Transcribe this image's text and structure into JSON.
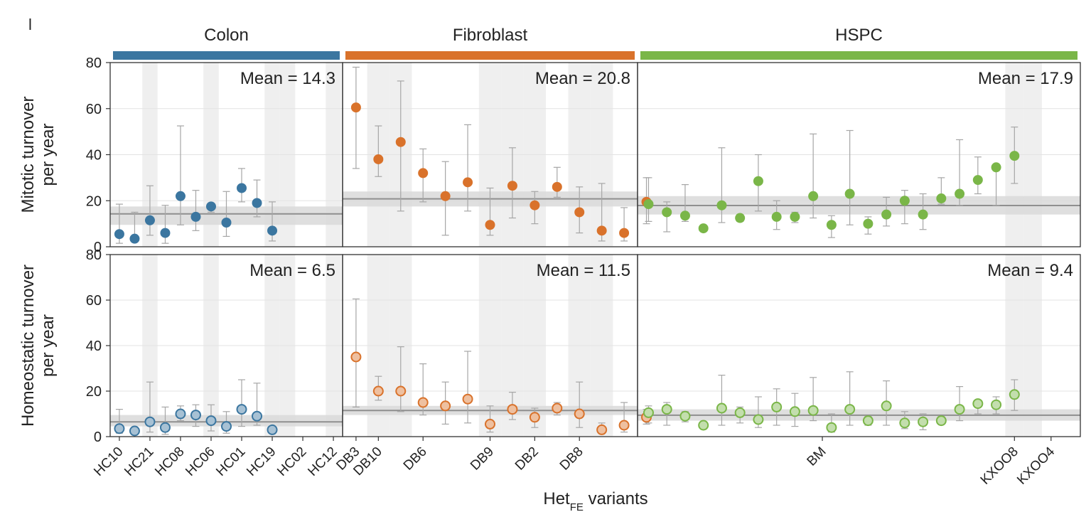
{
  "chart_data": {
    "type": "scatter",
    "panel_label": "l",
    "x_label_main": "Het",
    "x_label_sub": "FE",
    "x_label_rest": " variants",
    "ylim": [
      0,
      80
    ],
    "yticks": [
      "0",
      "20",
      "40",
      "60",
      "80"
    ],
    "groups": [
      {
        "name": "Colon",
        "color": "#3b76a0",
        "tick_labels": [
          "HC10",
          "HC21",
          "HC08",
          "HC06",
          "HC01",
          "HC19",
          "HC02",
          "HC12"
        ],
        "tick_positions": [
          1,
          3,
          5,
          7,
          9,
          11,
          13,
          15
        ],
        "shaded_positions": [
          3,
          7,
          11,
          12,
          15
        ],
        "n": 15
      },
      {
        "name": "Fibroblast",
        "color": "#d9722b",
        "tick_labels": [
          "DB3",
          "DB10",
          "DB6",
          "DB9",
          "DB2",
          "DB8"
        ],
        "tick_positions": [
          1,
          2,
          4,
          7,
          9,
          11
        ],
        "shaded_positions": [
          2,
          3,
          7,
          8,
          9,
          11,
          12
        ],
        "n": 13
      },
      {
        "name": "HSPC",
        "color": "#7ab648",
        "tick_labels": [
          "BM",
          "KXOO8",
          "KXOO4"
        ],
        "tick_positions": [
          10.5,
          21,
          23
        ],
        "shaded_positions": [
          21,
          22
        ],
        "n": 24
      }
    ],
    "rows": [
      {
        "ylabel_line1": "Mitotic turnover",
        "ylabel_line2": "per year",
        "filled": true,
        "panels": [
          {
            "group": "Colon",
            "mean_text": "Mean = 14.3",
            "mean": 14.3,
            "band": [
              9.5,
              17.5
            ],
            "points": [
              {
                "x": 1,
                "y": 5.5,
                "lo": 1.5,
                "hi": 18.5
              },
              {
                "x": 2,
                "y": 3.5,
                "lo": 2.5,
                "hi": 15
              },
              {
                "x": 3,
                "y": 11.5,
                "lo": 5,
                "hi": 26.5
              },
              {
                "x": 4,
                "y": 6,
                "lo": 1.5,
                "hi": 18
              },
              {
                "x": 5,
                "y": 22,
                "lo": 9.5,
                "hi": 52.5
              },
              {
                "x": 6,
                "y": 13,
                "lo": 7,
                "hi": 24.5
              },
              {
                "x": 7,
                "y": 17.5,
                "lo": 15,
                "hi": 18.5
              },
              {
                "x": 8,
                "y": 10.5,
                "lo": 4.5,
                "hi": 24
              },
              {
                "x": 9,
                "y": 25.5,
                "lo": 19.5,
                "hi": 34
              },
              {
                "x": 10,
                "y": 19,
                "lo": 13,
                "hi": 29
              },
              {
                "x": 11,
                "y": 7,
                "lo": 2.5,
                "hi": 19.5
              }
            ]
          },
          {
            "group": "Fibroblast",
            "mean_text": "Mean = 20.8",
            "mean": 20.8,
            "band": [
              17.5,
              24
            ],
            "points": [
              {
                "x": 1,
                "y": 60.5,
                "lo": 34,
                "hi": 78
              },
              {
                "x": 2,
                "y": 38,
                "lo": 30.5,
                "hi": 52.5
              },
              {
                "x": 3,
                "y": 45.5,
                "lo": 15.5,
                "hi": 72
              },
              {
                "x": 4,
                "y": 32,
                "lo": 19.5,
                "hi": 42.5
              },
              {
                "x": 5,
                "y": 22,
                "lo": 5,
                "hi": 37
              },
              {
                "x": 6,
                "y": 28,
                "lo": 15.5,
                "hi": 53
              },
              {
                "x": 7,
                "y": 9.5,
                "lo": 5,
                "hi": 25.5
              },
              {
                "x": 8,
                "y": 26.5,
                "lo": 12.5,
                "hi": 43
              },
              {
                "x": 9,
                "y": 18,
                "lo": 10,
                "hi": 24
              },
              {
                "x": 10,
                "y": 26,
                "lo": 21.5,
                "hi": 34.5
              },
              {
                "x": 11,
                "y": 15,
                "lo": 6,
                "hi": 26
              },
              {
                "x": 12,
                "y": 7,
                "lo": 2.5,
                "hi": 27.5
              },
              {
                "x": 13,
                "y": 6,
                "lo": 2.5,
                "hi": 17
              },
              {
                "x": 14,
                "y": 19.5,
                "lo": 10,
                "hi": 30
              }
            ]
          },
          {
            "group": "HSPC",
            "mean_text": "Mean = 17.9",
            "mean": 17.9,
            "band": [
              14,
              22
            ],
            "points": [
              {
                "x": 1,
                "y": 18.5,
                "lo": 11,
                "hi": 30
              },
              {
                "x": 2,
                "y": 15,
                "lo": 6.5,
                "hi": 19.5
              },
              {
                "x": 3,
                "y": 13.5,
                "lo": 11,
                "hi": 27
              },
              {
                "x": 4,
                "y": 8,
                "lo": 7,
                "hi": 9
              },
              {
                "x": 5,
                "y": 18,
                "lo": 10.5,
                "hi": 43
              },
              {
                "x": 6,
                "y": 12.5,
                "lo": 11,
                "hi": 14
              },
              {
                "x": 7,
                "y": 28.5,
                "lo": 15.5,
                "hi": 40
              },
              {
                "x": 8,
                "y": 13,
                "lo": 7.5,
                "hi": 20
              },
              {
                "x": 9,
                "y": 13,
                "lo": 10.5,
                "hi": 15
              },
              {
                "x": 10,
                "y": 22,
                "lo": 12.5,
                "hi": 49
              },
              {
                "x": 11,
                "y": 9.5,
                "lo": 4,
                "hi": 13.5
              },
              {
                "x": 12,
                "y": 23,
                "lo": 9.5,
                "hi": 50.5
              },
              {
                "x": 13,
                "y": 10,
                "lo": 5.5,
                "hi": 13
              },
              {
                "x": 14,
                "y": 14,
                "lo": 9,
                "hi": 21.5
              },
              {
                "x": 15,
                "y": 20,
                "lo": 10,
                "hi": 24.5
              },
              {
                "x": 16,
                "y": 14,
                "lo": 7.5,
                "hi": 23
              },
              {
                "x": 17,
                "y": 21,
                "lo": 18.5,
                "hi": 30
              },
              {
                "x": 18,
                "y": 23,
                "lo": 18,
                "hi": 46.5
              },
              {
                "x": 19,
                "y": 29,
                "lo": 23,
                "hi": 39
              },
              {
                "x": 20,
                "y": 34.5,
                "lo": 18,
                "hi": 35.5
              },
              {
                "x": 21,
                "y": 39.5,
                "lo": 27.5,
                "hi": 52
              }
            ]
          }
        ]
      },
      {
        "ylabel_line1": "Homeostatic turnover",
        "ylabel_line2": "per year",
        "filled": false,
        "panels": [
          {
            "group": "Colon",
            "mean_text": "Mean = 6.5",
            "mean": 6.5,
            "band": [
              4.5,
              9.5
            ],
            "points": [
              {
                "x": 1,
                "y": 3.5,
                "lo": 1.5,
                "hi": 12
              },
              {
                "x": 2,
                "y": 2.5,
                "lo": 1.5,
                "hi": 3.5
              },
              {
                "x": 3,
                "y": 6.5,
                "lo": 2,
                "hi": 24
              },
              {
                "x": 4,
                "y": 4,
                "lo": 1,
                "hi": 13
              },
              {
                "x": 5,
                "y": 10,
                "lo": 7,
                "hi": 13.5
              },
              {
                "x": 6,
                "y": 9.5,
                "lo": 4.5,
                "hi": 14
              },
              {
                "x": 7,
                "y": 7,
                "lo": 2.5,
                "hi": 14
              },
              {
                "x": 8,
                "y": 4.5,
                "lo": 1.5,
                "hi": 11
              },
              {
                "x": 9,
                "y": 12,
                "lo": 4.5,
                "hi": 25
              },
              {
                "x": 10,
                "y": 9,
                "lo": 5,
                "hi": 23.5
              },
              {
                "x": 11,
                "y": 3,
                "lo": 2,
                "hi": 4
              }
            ]
          },
          {
            "group": "Fibroblast",
            "mean_text": "Mean = 11.5",
            "mean": 11.5,
            "band": [
              9.5,
              13.5
            ],
            "points": [
              {
                "x": 1,
                "y": 35,
                "lo": 13,
                "hi": 60.5
              },
              {
                "x": 2,
                "y": 20,
                "lo": 16,
                "hi": 26.5
              },
              {
                "x": 3,
                "y": 20,
                "lo": 11,
                "hi": 39.5
              },
              {
                "x": 4,
                "y": 15,
                "lo": 9.5,
                "hi": 32
              },
              {
                "x": 5,
                "y": 13.5,
                "lo": 5.5,
                "hi": 24
              },
              {
                "x": 6,
                "y": 16.5,
                "lo": 6,
                "hi": 37.5
              },
              {
                "x": 7,
                "y": 5.5,
                "lo": 2,
                "hi": 13.5
              },
              {
                "x": 8,
                "y": 12,
                "lo": 7.5,
                "hi": 19.5
              },
              {
                "x": 9,
                "y": 8.5,
                "lo": 4,
                "hi": 12.5
              },
              {
                "x": 10,
                "y": 12.5,
                "lo": 9.5,
                "hi": 15
              },
              {
                "x": 11,
                "y": 10,
                "lo": 4,
                "hi": 24
              },
              {
                "x": 12,
                "y": 3,
                "lo": 1.5,
                "hi": 6
              },
              {
                "x": 13,
                "y": 5,
                "lo": 2,
                "hi": 15
              },
              {
                "x": 14,
                "y": 8.5,
                "lo": 5.5,
                "hi": 12
              }
            ]
          },
          {
            "group": "HSPC",
            "mean_text": "Mean = 9.4",
            "mean": 9.4,
            "band": [
              7,
              12
            ],
            "points": [
              {
                "x": 1,
                "y": 10.5,
                "lo": 6,
                "hi": 13.5
              },
              {
                "x": 2,
                "y": 12,
                "lo": 5,
                "hi": 15
              },
              {
                "x": 3,
                "y": 9,
                "lo": 6.5,
                "hi": 11
              },
              {
                "x": 4,
                "y": 5,
                "lo": 3.5,
                "hi": 6.5
              },
              {
                "x": 5,
                "y": 12.5,
                "lo": 5,
                "hi": 27
              },
              {
                "x": 6,
                "y": 10.5,
                "lo": 6,
                "hi": 13
              },
              {
                "x": 7,
                "y": 7.5,
                "lo": 4,
                "hi": 17.5
              },
              {
                "x": 8,
                "y": 13,
                "lo": 5,
                "hi": 21
              },
              {
                "x": 9,
                "y": 11,
                "lo": 4.5,
                "hi": 19
              },
              {
                "x": 10,
                "y": 11.5,
                "lo": 7,
                "hi": 26
              },
              {
                "x": 11,
                "y": 4,
                "lo": 2,
                "hi": 10
              },
              {
                "x": 12,
                "y": 12,
                "lo": 5,
                "hi": 28.5
              },
              {
                "x": 13,
                "y": 7,
                "lo": 5,
                "hi": 9
              },
              {
                "x": 14,
                "y": 13.5,
                "lo": 5,
                "hi": 24.5
              },
              {
                "x": 15,
                "y": 6,
                "lo": 3.5,
                "hi": 11
              },
              {
                "x": 16,
                "y": 6.5,
                "lo": 3,
                "hi": 10
              },
              {
                "x": 17,
                "y": 7,
                "lo": 6,
                "hi": 9
              },
              {
                "x": 18,
                "y": 12,
                "lo": 7,
                "hi": 22
              },
              {
                "x": 19,
                "y": 14.5,
                "lo": 10,
                "hi": 16
              },
              {
                "x": 20,
                "y": 14,
                "lo": 10,
                "hi": 17.5
              },
              {
                "x": 21,
                "y": 18.5,
                "lo": 11.5,
                "hi": 25
              }
            ]
          }
        ]
      }
    ]
  }
}
